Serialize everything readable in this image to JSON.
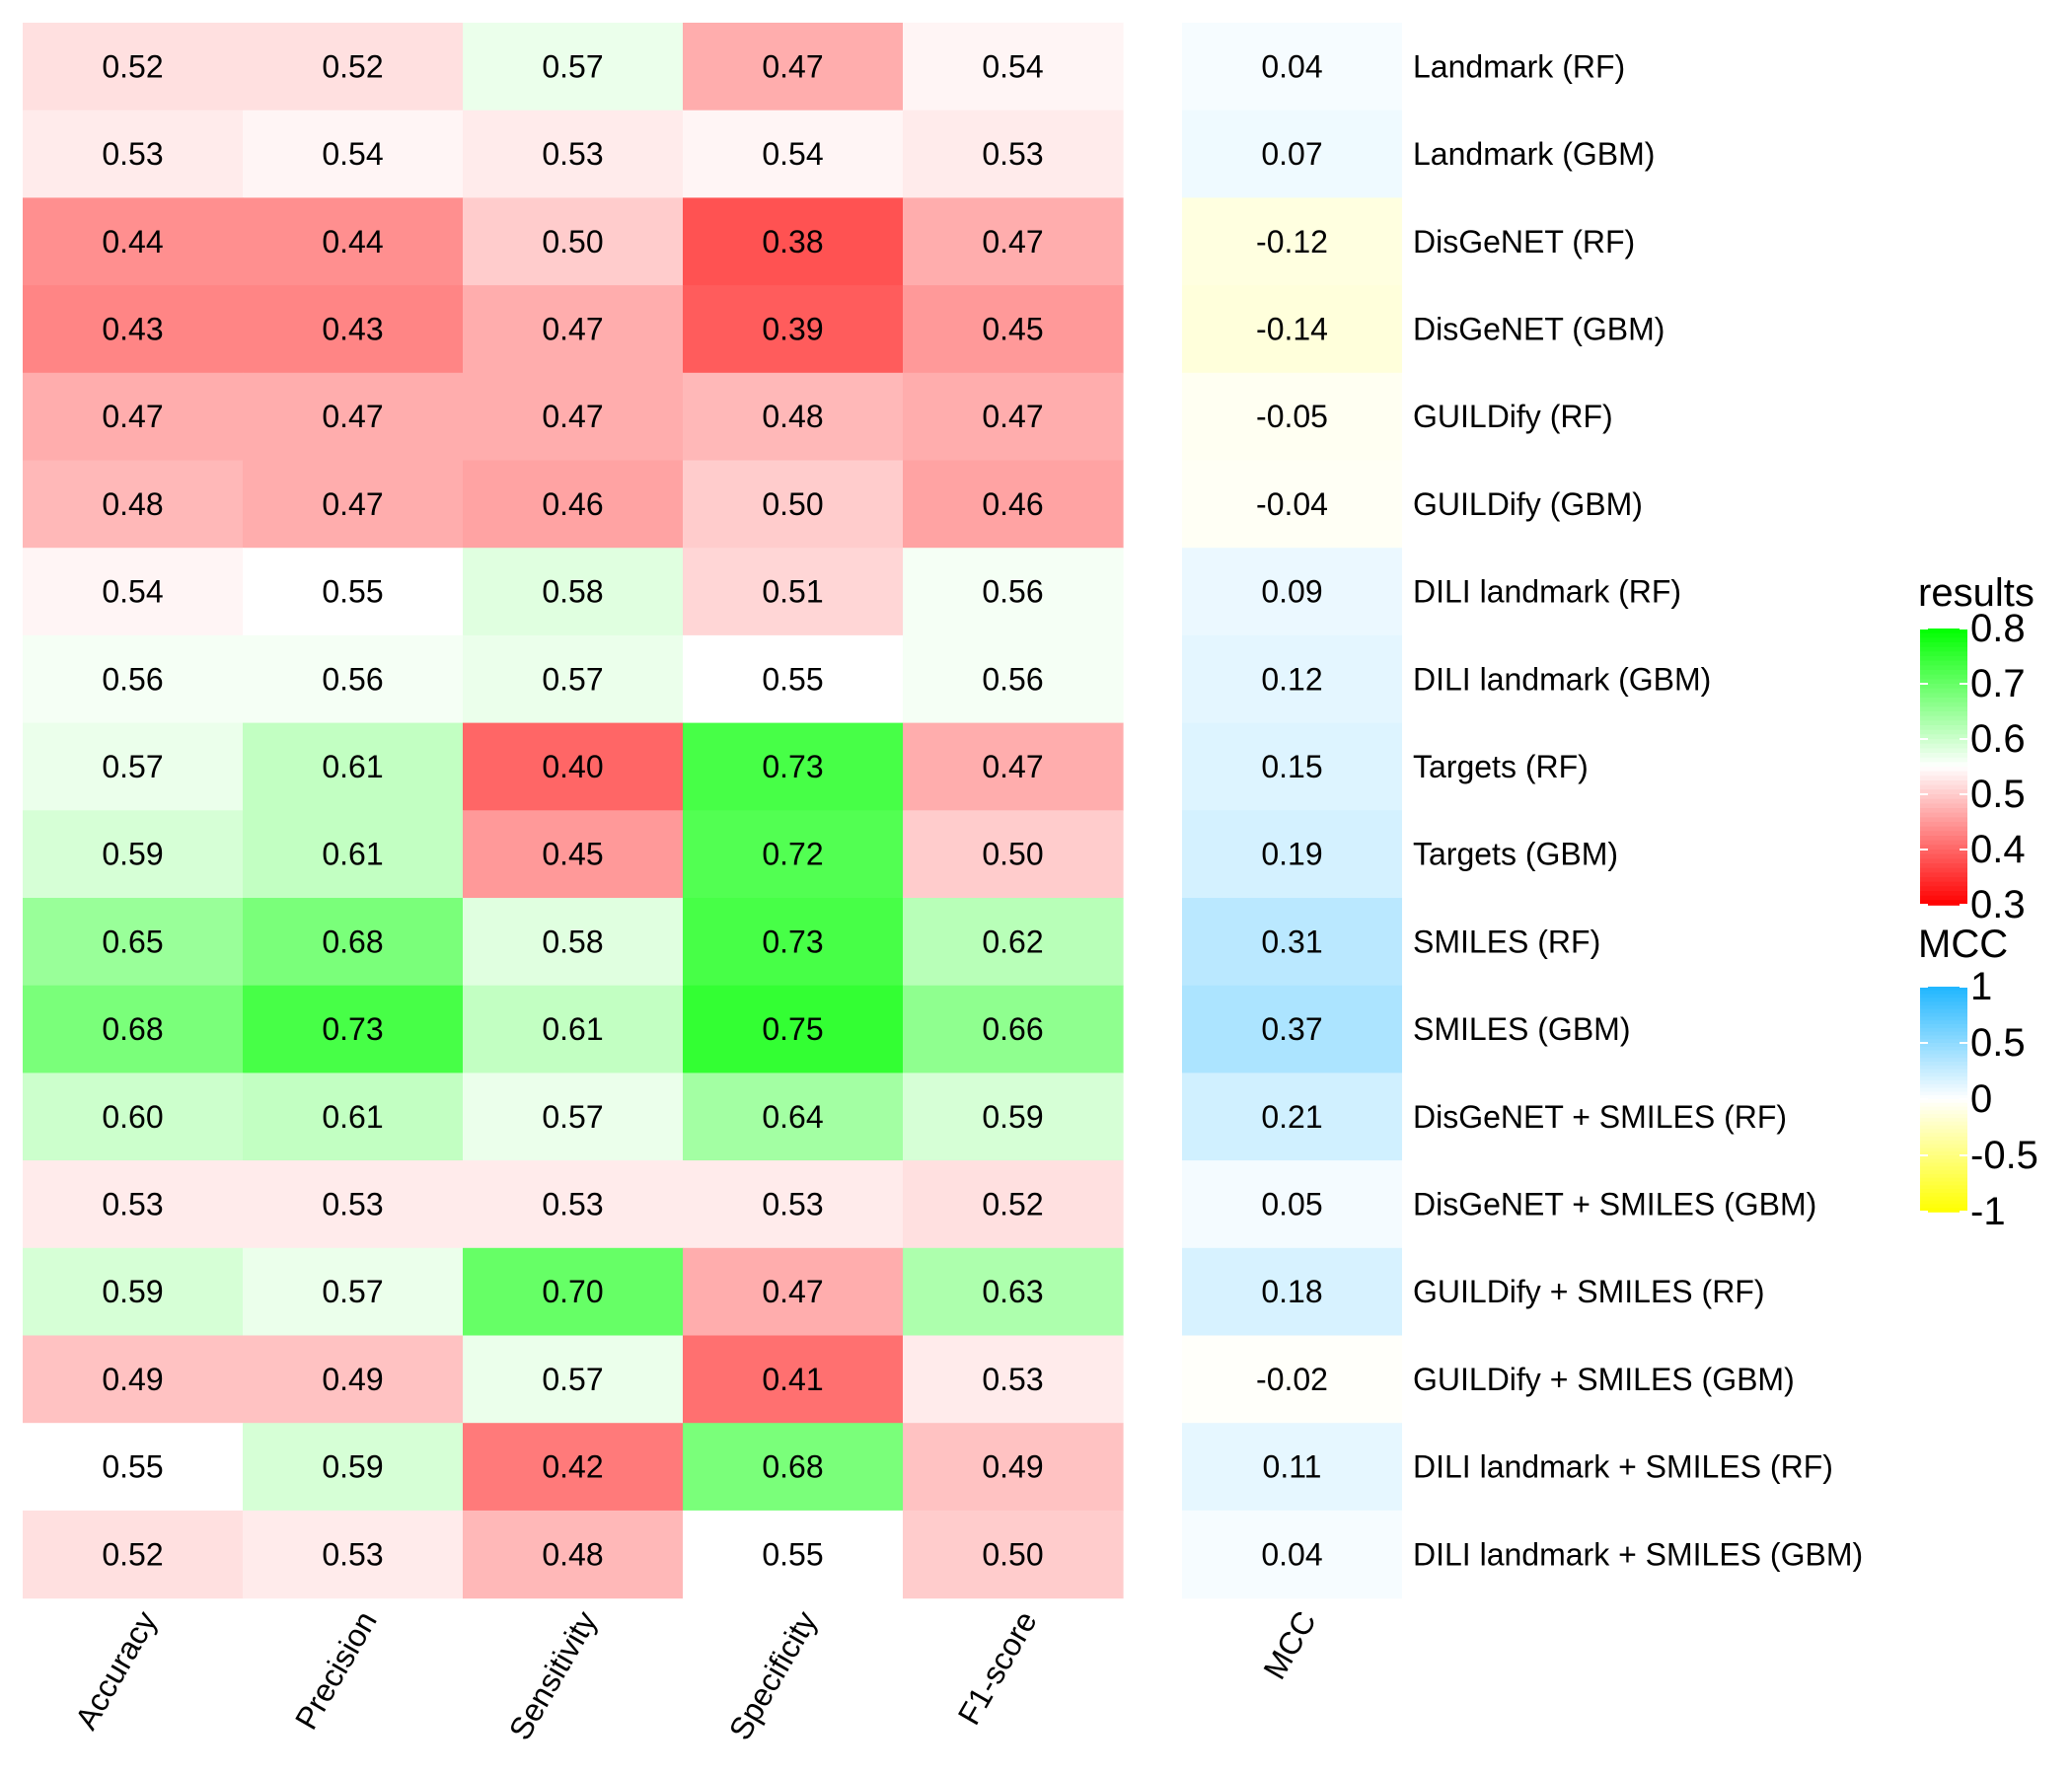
{
  "chart_data": {
    "type": "heatmap",
    "columns": [
      "Accuracy",
      "Precision",
      "Sensitivity",
      "Specificity",
      "F1-score"
    ],
    "mcc_column": "MCC",
    "rows": [
      "Landmark (RF)",
      "Landmark (GBM)",
      "DisGeNET (RF)",
      "DisGeNET (GBM)",
      "GUILDify (RF)",
      "GUILDify (GBM)",
      "DILI landmark (RF)",
      "DILI landmark (GBM)",
      "Targets (RF)",
      "Targets (GBM)",
      "SMILES (RF)",
      "SMILES (GBM)",
      "DisGeNET + SMILES (RF)",
      "DisGeNET + SMILES (GBM)",
      "GUILDify + SMILES (RF)",
      "GUILDify + SMILES (GBM)",
      "DILI landmark + SMILES (RF)",
      "DILI landmark + SMILES (GBM)"
    ],
    "values": [
      [
        "0.52",
        "0.52",
        "0.57",
        "0.47",
        "0.54"
      ],
      [
        "0.53",
        "0.54",
        "0.53",
        "0.54",
        "0.53"
      ],
      [
        "0.44",
        "0.44",
        "0.50",
        "0.38",
        "0.47"
      ],
      [
        "0.43",
        "0.43",
        "0.47",
        "0.39",
        "0.45"
      ],
      [
        "0.47",
        "0.47",
        "0.47",
        "0.48",
        "0.47"
      ],
      [
        "0.48",
        "0.47",
        "0.46",
        "0.50",
        "0.46"
      ],
      [
        "0.54",
        "0.55",
        "0.58",
        "0.51",
        "0.56"
      ],
      [
        "0.56",
        "0.56",
        "0.57",
        "0.55",
        "0.56"
      ],
      [
        "0.57",
        "0.61",
        "0.40",
        "0.73",
        "0.47"
      ],
      [
        "0.59",
        "0.61",
        "0.45",
        "0.72",
        "0.50"
      ],
      [
        "0.65",
        "0.68",
        "0.58",
        "0.73",
        "0.62"
      ],
      [
        "0.68",
        "0.73",
        "0.61",
        "0.75",
        "0.66"
      ],
      [
        "0.60",
        "0.61",
        "0.57",
        "0.64",
        "0.59"
      ],
      [
        "0.53",
        "0.53",
        "0.53",
        "0.53",
        "0.52"
      ],
      [
        "0.59",
        "0.57",
        "0.70",
        "0.47",
        "0.63"
      ],
      [
        "0.49",
        "0.49",
        "0.57",
        "0.41",
        "0.53"
      ],
      [
        "0.55",
        "0.59",
        "0.42",
        "0.68",
        "0.49"
      ],
      [
        "0.52",
        "0.53",
        "0.48",
        "0.55",
        "0.50"
      ]
    ],
    "mcc": [
      "0.04",
      "0.07",
      "-0.12",
      "-0.14",
      "-0.05",
      "-0.04",
      "0.09",
      "0.12",
      "0.15",
      "0.19",
      "0.31",
      "0.37",
      "0.21",
      "0.05",
      "0.18",
      "-0.02",
      "0.11",
      "0.04"
    ],
    "legend_results": {
      "title": "results",
      "ticks": [
        "0.8",
        "0.7",
        "0.6",
        "0.5",
        "0.4",
        "0.3"
      ],
      "range": [
        0.3,
        0.8
      ],
      "colors": {
        "low": "#ff0000",
        "mid": "#ffffff",
        "high": "#00ff00"
      }
    },
    "legend_mcc": {
      "title": "MCC",
      "ticks": [
        "1",
        "0.5",
        "0",
        "-0.5",
        "-1"
      ],
      "range": [
        -1,
        1
      ],
      "colors": {
        "low": "#ffff00",
        "mid": "#ffffff",
        "high": "#1fb6ff"
      }
    }
  }
}
